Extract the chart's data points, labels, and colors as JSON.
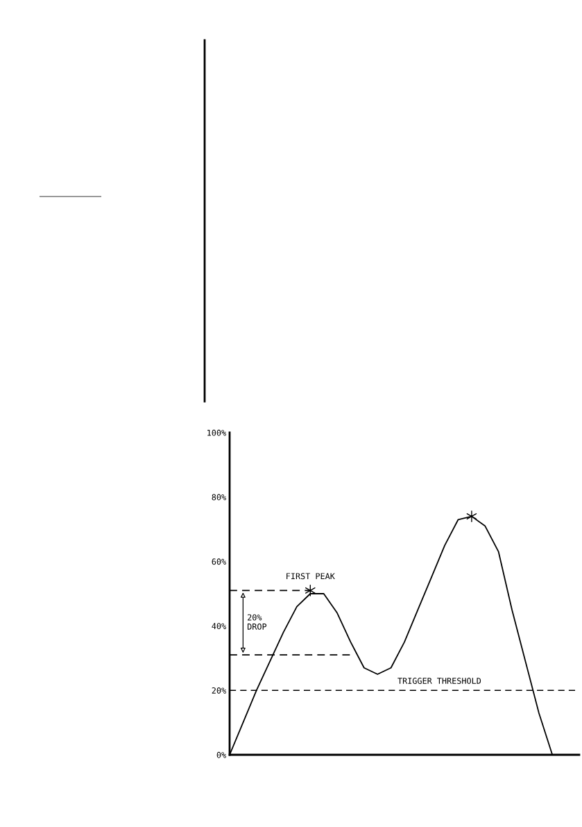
{
  "chart_data": {
    "type": "line",
    "categories": [
      null,
      null,
      null,
      null,
      null,
      null,
      null,
      null,
      null,
      null,
      null,
      null,
      null,
      null,
      null,
      null,
      null,
      null,
      null,
      null,
      null,
      null,
      null,
      null,
      null,
      null,
      null
    ],
    "series": [
      {
        "color": "#000000",
        "values": [
          0,
          10,
          20,
          29,
          38,
          46,
          50,
          50,
          44,
          35,
          27,
          25,
          27,
          35,
          45,
          55,
          65,
          73,
          74,
          71,
          63,
          45,
          29,
          13,
          0,
          null,
          null
        ]
      },
      {
        "type": "scatter",
        "marker": "cross",
        "color": "#000000",
        "values": [
          null,
          null,
          null,
          null,
          null,
          null,
          51,
          null,
          null,
          null,
          null,
          null,
          null,
          null,
          null,
          null,
          null,
          null,
          74,
          null,
          null,
          null,
          null,
          null,
          null,
          null,
          null
        ]
      },
      {
        "color": "#000000",
        "line_style": "dashed",
        "values": [
          51,
          51,
          51,
          51,
          51,
          51,
          51,
          null,
          null,
          null,
          null,
          null,
          null,
          null,
          null,
          null,
          null,
          null,
          null,
          null,
          null,
          null,
          null,
          null,
          null,
          null,
          null
        ]
      },
      {
        "color": "#000000",
        "line_style": "dashed",
        "values": [
          31,
          31,
          31,
          31,
          31,
          31,
          31,
          31,
          31,
          31,
          null,
          null,
          null,
          null,
          null,
          null,
          null,
          null,
          null,
          null,
          null,
          null,
          null,
          null,
          null,
          null,
          null
        ]
      }
    ],
    "ref_lines": [
      {
        "axis": "y",
        "value": 20,
        "label": "TRIGGER THRESHOLD",
        "color": "#000000",
        "line_style": "dashed"
      }
    ],
    "annotations": [
      "FIRST PEAK",
      "20%\nDROP"
    ],
    "ylim": [
      0,
      100
    ],
    "yticks": [
      {
        "value": 0,
        "label": "0%"
      },
      {
        "value": 20,
        "label": "20%"
      },
      {
        "value": 40,
        "label": "40%"
      },
      {
        "value": 60,
        "label": "60%"
      },
      {
        "value": 80,
        "label": "80%"
      },
      {
        "value": 100,
        "label": "100%"
      }
    ],
    "tick_labels": "y",
    "grid": false,
    "legend": false,
    "line_style": "solid",
    "marker": "none"
  }
}
